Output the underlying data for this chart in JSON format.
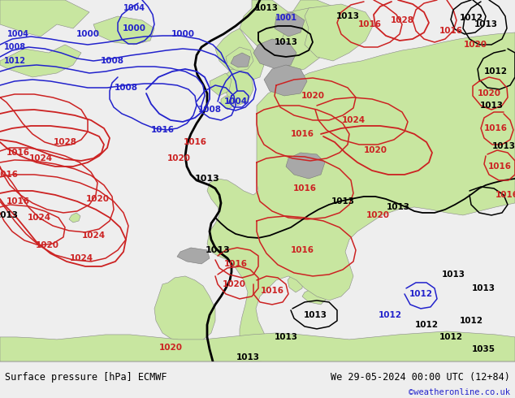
{
  "title_left": "Surface pressure [hPa] ECMWF",
  "title_right": "We 29-05-2024 00:00 UTC (12+84)",
  "credit": "©weatheronline.co.uk",
  "sea_color": "#d0dde8",
  "land_color": "#c8e6a0",
  "gray_color": "#a8a8a8",
  "footer_bg": "#eeeeee",
  "map_bg": "#d0dde8"
}
